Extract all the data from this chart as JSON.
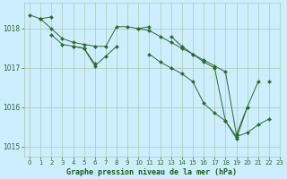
{
  "bg_color": "#cceeff",
  "grid_color": "#aaccaa",
  "line_color": "#2d6a2d",
  "xlabel": "Graphe pression niveau de la mer (hPa)",
  "xlabel_color": "#1a5c1a",
  "ylim": [
    1014.75,
    1018.65
  ],
  "xlim": [
    -0.5,
    23
  ],
  "yticks": [
    1015,
    1016,
    1017,
    1018
  ],
  "xticks": [
    0,
    1,
    2,
    3,
    4,
    5,
    6,
    7,
    8,
    9,
    10,
    11,
    12,
    13,
    14,
    15,
    16,
    17,
    18,
    19,
    20,
    21,
    22,
    23
  ],
  "lines": [
    {
      "x": [
        0,
        1,
        2,
        3,
        4,
        5,
        6,
        7,
        8,
        9,
        10,
        11,
        12,
        13,
        14,
        15,
        16,
        17,
        18,
        19,
        20,
        21
      ],
      "y": [
        1018.35,
        1018.25,
        1018.0,
        1017.75,
        1017.65,
        1017.6,
        1017.55,
        1017.55,
        1018.05,
        1018.05,
        1018.0,
        1017.95,
        1017.8,
        1017.65,
        1017.5,
        1017.35,
        1017.2,
        1017.05,
        1016.9,
        1015.3,
        1016.0,
        1016.65
      ]
    },
    {
      "x": [
        1,
        2
      ],
      "y": [
        1018.25,
        1018.3
      ]
    },
    {
      "x": [
        2,
        3,
        4,
        5,
        6,
        7,
        8,
        11,
        12,
        13,
        14,
        15,
        16,
        17,
        18,
        19,
        20,
        21,
        22
      ],
      "y": [
        1017.85,
        1017.6,
        1017.55,
        1017.5,
        1017.05,
        1017.3,
        1017.55,
        1017.35,
        1017.15,
        1017.0,
        1016.85,
        1016.65,
        1016.1,
        1015.85,
        1015.65,
        1015.25,
        1015.35,
        1015.55,
        1015.7
      ]
    },
    {
      "x": [
        4,
        5,
        6
      ],
      "y": [
        1017.55,
        1017.5,
        1017.1
      ]
    },
    {
      "x": [
        10,
        11,
        13,
        14,
        15,
        16,
        17,
        18,
        19,
        20,
        22
      ],
      "y": [
        1018.0,
        1018.05,
        1017.8,
        1017.55,
        1017.35,
        1017.15,
        1017.0,
        1015.65,
        1015.2,
        1016.0,
        1016.65
      ]
    }
  ]
}
